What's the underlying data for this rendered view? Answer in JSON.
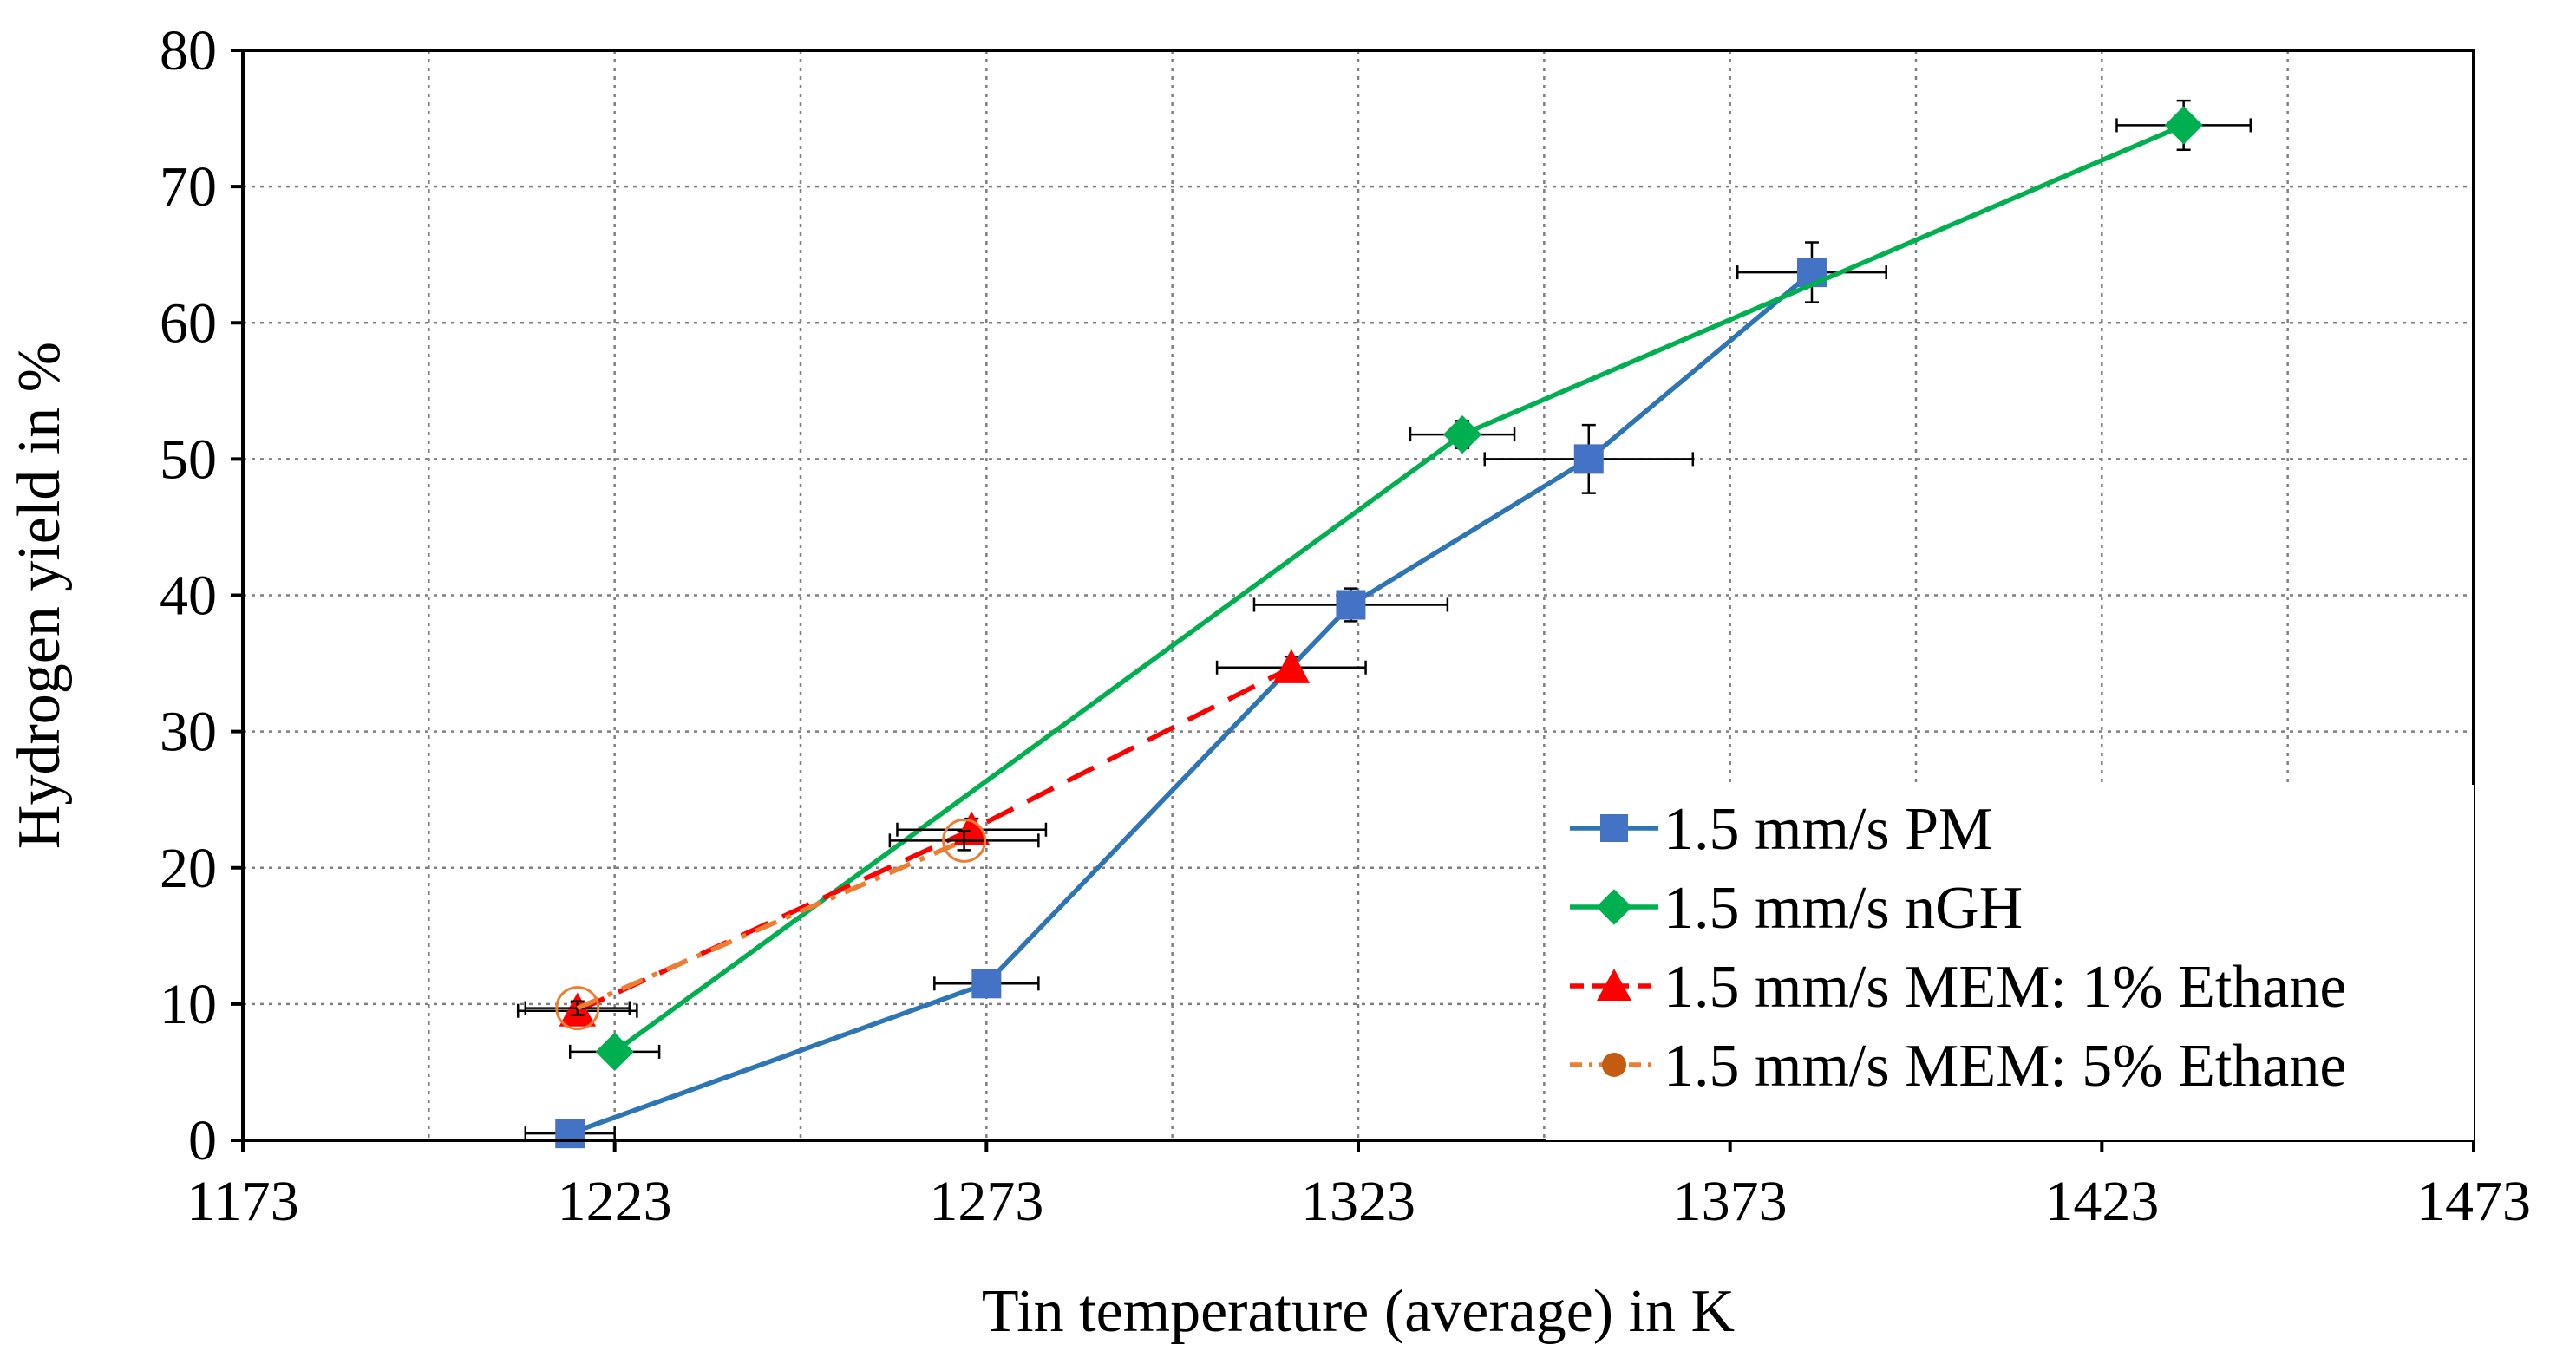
{
  "chart_data": {
    "type": "line",
    "title": "",
    "xlabel": "Tin temperature (average) in K",
    "ylabel": "Hydrogen yield in %",
    "xlim": [
      1173,
      1473
    ],
    "ylim": [
      0,
      80
    ],
    "xticks": [
      1173,
      1223,
      1273,
      1323,
      1373,
      1423,
      1473
    ],
    "yticks": [
      0,
      10,
      20,
      30,
      40,
      50,
      60,
      70,
      80
    ],
    "x_minor_grid": [
      1198,
      1248,
      1298,
      1348,
      1398,
      1448
    ],
    "grid": true,
    "legend_position": "bottom-right",
    "series": [
      {
        "name": "1.5 mm/s PM",
        "color": "#4472C4",
        "line_color": "#2E75B6",
        "marker": "square",
        "line_style": "solid",
        "points": [
          {
            "x": 1217,
            "y": 0.5,
            "xerr": 6,
            "yerr": 0.5
          },
          {
            "x": 1273,
            "y": 11.5,
            "xerr": 7,
            "yerr": 0.8
          },
          {
            "x": 1322,
            "y": 39.3,
            "xerr": 13,
            "yerr": 1.2
          },
          {
            "x": 1354,
            "y": 50.0,
            "xerr": 14,
            "yerr": 2.5
          },
          {
            "x": 1384,
            "y": 63.7,
            "xerr": 10,
            "yerr": 2.2
          }
        ]
      },
      {
        "name": "1.5 mm/s nGH",
        "color": "#00B050",
        "line_color": "#00B050",
        "marker": "diamond",
        "line_style": "solid",
        "points": [
          {
            "x": 1223,
            "y": 6.5,
            "xerr": 6,
            "yerr": 0.5
          },
          {
            "x": 1337,
            "y": 51.8,
            "xerr": 7,
            "yerr": 1.0
          },
          {
            "x": 1434,
            "y": 74.5,
            "xerr": 9,
            "yerr": 1.8
          }
        ]
      },
      {
        "name": "1.5 mm/s MEM: 1% Ethane",
        "color": "#FF0000",
        "line_color": "#FF0000",
        "marker": "triangle",
        "line_style": "dashed",
        "points": [
          {
            "x": 1218,
            "y": 9.5,
            "xerr": 8,
            "yerr": 0.6
          },
          {
            "x": 1271,
            "y": 22.8,
            "xerr": 10,
            "yerr": 0.8
          },
          {
            "x": 1314,
            "y": 34.7,
            "xerr": 10,
            "yerr": 0.8
          }
        ]
      },
      {
        "name": "1.5 mm/s MEM: 5% Ethane",
        "color": "#C55A11",
        "line_color": "#ED7D31",
        "marker": "circle",
        "line_style": "dashdot",
        "points": [
          {
            "x": 1218,
            "y": 9.7,
            "xerr": 7,
            "yerr": 0.5
          },
          {
            "x": 1270,
            "y": 22.0,
            "xerr": 10,
            "yerr": 0.7
          }
        ]
      }
    ]
  }
}
